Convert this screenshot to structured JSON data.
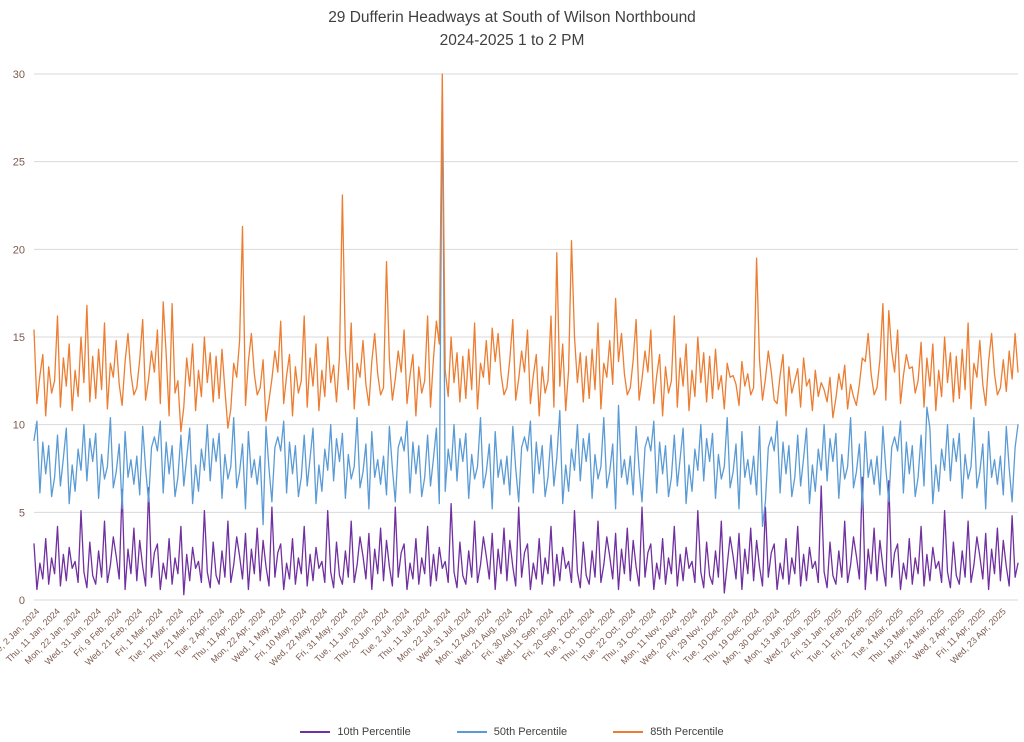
{
  "chart_data": {
    "type": "line",
    "title": "29 Dufferin Headways at South of Wilson Northbound",
    "subtitle": "2024-2025 1 to 2 PM",
    "xlabel": "",
    "ylabel": "",
    "ylim": [
      0,
      30
    ],
    "yticks": [
      0,
      5,
      10,
      15,
      20,
      25,
      30
    ],
    "grid": true,
    "legend_position": "bottom",
    "x_tick_every": 7,
    "x_tick_labels": [
      "Tue, 2 Jan, 2024",
      "Thu, 11 Jan, 2024",
      "Mon, 22 Jan, 2024",
      "Wed, 31 Jan, 2024",
      "Fri, 9 Feb, 2024",
      "Wed, 21 Feb, 2024",
      "Fri, 1 Mar, 2024",
      "Tue, 12 Mar, 2024",
      "Thu, 21 Mar, 2024",
      "Tue, 2 Apr, 2024",
      "Thu, 11 Apr, 2024",
      "Mon, 22 Apr, 2024",
      "Wed, 1 May, 2024",
      "Fri, 10 May, 2024",
      "Wed, 22 May, 2024",
      "Fri, 31 May, 2024",
      "Tue, 11 Jun, 2024",
      "Thu, 20 Jun, 2024",
      "Tue, 2 Jul, 2024",
      "Thu, 11 Jul, 2024",
      "Mon, 22 Jul, 2024",
      "Wed, 31 Jul, 2024",
      "Mon, 12 Aug, 2024",
      "Wed, 21 Aug, 2024",
      "Fri, 30 Aug, 2024",
      "Wed, 11 Sep, 2024",
      "Fri, 20 Sep, 2024",
      "Tue, 1 Oct, 2024",
      "Thu, 10 Oct, 2024",
      "Tue, 22 Oct, 2024",
      "Thu, 31 Oct, 2024",
      "Mon, 11 Nov, 2024",
      "Wed, 20 Nov, 2024",
      "Fri, 29 Nov, 2024",
      "Tue, 10 Dec, 2024",
      "Thu, 19 Dec, 2024",
      "Mon, 30 Dec, 2024",
      "Mon, 13 Jan, 2025",
      "Wed, 22 Jan, 2025",
      "Fri, 31 Jan, 2025",
      "Tue, 11 Feb, 2025",
      "Fri, 21 Feb, 2025",
      "Tue, 4 Mar, 2025",
      "Thu, 13 Mar, 2025",
      "Mon, 24 Mar, 2025",
      "Wed, 2 Apr, 2025",
      "Fri, 11 Apr, 2025",
      "Wed, 23 Apr, 2025"
    ],
    "style": {
      "grid_color": "#d9d9d9",
      "axis_label_color": "#7d5a4e",
      "title_color": "#3f3f3f",
      "legend_text_color": "#404040",
      "background": "#ffffff"
    },
    "series": [
      {
        "name": "10th Percentile",
        "color": "#7030a0",
        "values": [
          3.2,
          0.6,
          2.1,
          1.2,
          3.5,
          0.9,
          2.4,
          1.5,
          4.2,
          0.8,
          2.6,
          1.1,
          3.0,
          1.8,
          2.2,
          1.0,
          5.1,
          1.6,
          0.7,
          3.3,
          1.4,
          0.9,
          2.8,
          1.3,
          4.5,
          1.0,
          2.0,
          3.6,
          2.5,
          1.2,
          6.3,
          0.6,
          2.9,
          1.5,
          4.1,
          1.1,
          3.4,
          1.9,
          0.8,
          6.4,
          1.3,
          2.7,
          3.2,
          0.6,
          2.1,
          1.2,
          3.5,
          0.9,
          2.4,
          1.5,
          4.2,
          0.3,
          2.6,
          1.1,
          3.0,
          1.8,
          2.2,
          1.0,
          5.1,
          1.6,
          0.7,
          3.3,
          1.4,
          0.9,
          2.8,
          1.3,
          4.5,
          1.0,
          2.0,
          3.6,
          2.5,
          1.2,
          3.8,
          0.6,
          2.9,
          1.5,
          4.1,
          1.1,
          3.4,
          1.9,
          0.8,
          5.3,
          1.3,
          2.7,
          3.2,
          0.6,
          2.1,
          1.2,
          3.5,
          0.9,
          2.4,
          1.5,
          4.2,
          0.8,
          2.6,
          1.1,
          3.0,
          1.8,
          2.2,
          1.0,
          5.1,
          1.6,
          0.7,
          3.3,
          1.4,
          0.9,
          2.8,
          1.3,
          4.5,
          1.0,
          2.0,
          3.6,
          2.5,
          1.2,
          3.8,
          0.6,
          2.9,
          1.5,
          4.1,
          1.1,
          3.4,
          1.9,
          0.8,
          5.3,
          1.3,
          2.7,
          3.2,
          0.6,
          2.1,
          1.2,
          3.5,
          0.9,
          2.4,
          1.5,
          4.2,
          0.8,
          2.6,
          1.1,
          3.0,
          1.8,
          2.2,
          1.0,
          5.5,
          1.6,
          0.7,
          3.3,
          1.4,
          0.9,
          2.8,
          1.3,
          4.5,
          1.0,
          2.0,
          3.6,
          2.5,
          1.2,
          3.8,
          0.6,
          2.9,
          1.5,
          4.1,
          1.1,
          3.4,
          1.9,
          0.8,
          5.3,
          1.3,
          2.7,
          3.2,
          0.6,
          2.1,
          1.2,
          3.5,
          0.9,
          2.4,
          1.5,
          4.2,
          0.8,
          2.6,
          1.1,
          3.0,
          1.8,
          2.2,
          1.0,
          5.1,
          1.6,
          0.7,
          3.3,
          1.4,
          0.9,
          2.8,
          1.3,
          4.5,
          1.0,
          2.0,
          3.6,
          2.5,
          1.2,
          3.8,
          0.6,
          2.9,
          1.5,
          4.1,
          1.1,
          3.4,
          1.9,
          0.8,
          5.3,
          1.3,
          2.7,
          3.2,
          0.6,
          2.1,
          1.2,
          3.5,
          0.9,
          2.4,
          1.5,
          4.2,
          0.8,
          2.6,
          1.1,
          3.0,
          1.8,
          2.2,
          1.0,
          5.1,
          1.6,
          0.7,
          3.3,
          1.4,
          0.9,
          2.8,
          1.3,
          4.5,
          0.4,
          2.0,
          3.6,
          2.5,
          1.2,
          3.8,
          0.6,
          2.9,
          1.5,
          4.1,
          1.1,
          3.4,
          1.9,
          0.8,
          5.3,
          1.3,
          2.7,
          3.2,
          0.6,
          2.1,
          1.2,
          3.5,
          0.9,
          2.4,
          1.5,
          4.2,
          0.8,
          2.6,
          1.1,
          3.0,
          1.8,
          2.2,
          1.0,
          6.5,
          1.6,
          0.7,
          3.3,
          1.4,
          0.9,
          2.8,
          1.3,
          4.5,
          1.0,
          2.0,
          3.6,
          2.5,
          1.2,
          7.0,
          0.6,
          2.9,
          1.5,
          4.1,
          1.1,
          3.4,
          1.9,
          0.8,
          6.8,
          1.3,
          2.7,
          3.2,
          0.6,
          2.1,
          1.2,
          3.5,
          0.9,
          2.4,
          1.5,
          4.2,
          0.8,
          2.6,
          1.1,
          3.0,
          1.8,
          2.2,
          1.0,
          5.1,
          1.6,
          0.7,
          3.3,
          1.4,
          0.9,
          2.8,
          1.3,
          4.5,
          1.0,
          2.0,
          3.6,
          2.5,
          1.2,
          3.8,
          0.6,
          2.9,
          1.5,
          4.1,
          1.1,
          3.4,
          1.9,
          0.8,
          4.8,
          1.3,
          2.1
        ]
      },
      {
        "name": "50th Percentile",
        "color": "#5b9bd5",
        "values": [
          9.1,
          10.2,
          6.1,
          9.0,
          7.2,
          8.8,
          5.9,
          7.0,
          9.4,
          6.5,
          8.1,
          9.8,
          5.5,
          7.7,
          6.2,
          8.6,
          7.4,
          10.0,
          6.8,
          9.2,
          7.9,
          9.5,
          5.8,
          8.3,
          6.9,
          7.6,
          10.4,
          6.4,
          7.3,
          8.9,
          5.2,
          9.6,
          7.0,
          8.0,
          6.6,
          8.2,
          6.0,
          9.9,
          7.5,
          5.6,
          8.7,
          9.3,
          8.5,
          10.2,
          6.1,
          9.0,
          7.2,
          8.8,
          5.9,
          7.0,
          9.4,
          6.5,
          8.1,
          9.8,
          5.5,
          7.7,
          6.2,
          8.6,
          7.4,
          10.0,
          6.8,
          9.2,
          7.9,
          9.5,
          5.8,
          8.3,
          6.9,
          7.6,
          10.4,
          6.4,
          7.3,
          8.9,
          5.2,
          9.6,
          7.0,
          8.0,
          6.6,
          8.2,
          4.3,
          9.9,
          7.5,
          5.6,
          8.7,
          9.3,
          8.5,
          10.2,
          6.1,
          9.0,
          7.2,
          8.8,
          5.9,
          7.0,
          9.4,
          6.5,
          8.1,
          9.8,
          5.5,
          7.7,
          6.2,
          8.6,
          7.4,
          10.0,
          6.8,
          9.2,
          7.9,
          9.5,
          5.8,
          8.3,
          6.9,
          7.6,
          10.4,
          6.4,
          7.3,
          8.9,
          5.2,
          9.6,
          7.0,
          8.0,
          6.6,
          8.2,
          6.0,
          9.9,
          7.5,
          5.6,
          8.7,
          9.3,
          8.5,
          10.2,
          6.1,
          9.0,
          7.2,
          8.8,
          5.9,
          7.0,
          9.4,
          6.5,
          8.1,
          9.8,
          5.5,
          29.5,
          6.2,
          8.6,
          7.4,
          10.0,
          6.8,
          9.2,
          7.9,
          9.5,
          5.8,
          8.3,
          6.9,
          7.6,
          10.4,
          6.4,
          7.3,
          8.9,
          5.2,
          9.6,
          7.0,
          8.0,
          6.6,
          8.2,
          6.0,
          9.9,
          7.5,
          5.6,
          8.7,
          9.3,
          8.5,
          10.2,
          6.1,
          9.0,
          7.2,
          8.8,
          5.9,
          7.0,
          9.4,
          6.5,
          8.1,
          10.8,
          5.5,
          7.7,
          6.2,
          8.6,
          7.4,
          10.0,
          6.8,
          9.2,
          7.9,
          9.5,
          5.8,
          8.3,
          6.9,
          7.6,
          10.4,
          6.4,
          7.3,
          8.9,
          5.2,
          11.1,
          7.0,
          8.0,
          6.6,
          8.2,
          6.0,
          9.9,
          7.5,
          5.6,
          8.7,
          9.3,
          8.5,
          10.2,
          6.1,
          9.0,
          7.2,
          8.8,
          5.9,
          7.0,
          9.4,
          6.5,
          8.1,
          9.8,
          5.5,
          7.7,
          6.2,
          8.6,
          7.4,
          10.0,
          6.8,
          9.2,
          7.9,
          9.5,
          5.8,
          8.3,
          6.9,
          7.6,
          10.4,
          6.4,
          7.3,
          8.9,
          5.2,
          9.6,
          7.0,
          8.0,
          6.6,
          8.2,
          6.0,
          9.9,
          4.2,
          5.6,
          8.7,
          9.3,
          8.5,
          10.2,
          6.1,
          9.0,
          7.2,
          8.8,
          5.9,
          7.0,
          9.4,
          6.5,
          8.1,
          9.8,
          5.5,
          7.7,
          6.2,
          8.6,
          7.4,
          10.0,
          6.8,
          9.2,
          7.9,
          9.5,
          5.8,
          8.3,
          6.9,
          7.6,
          10.4,
          6.4,
          7.3,
          8.9,
          5.2,
          9.6,
          7.0,
          8.0,
          6.6,
          8.2,
          6.0,
          9.9,
          7.5,
          5.6,
          8.7,
          9.3,
          8.5,
          10.2,
          6.1,
          9.0,
          7.2,
          8.8,
          5.9,
          7.0,
          9.4,
          6.5,
          11.0,
          9.8,
          5.5,
          7.7,
          6.2,
          8.6,
          7.4,
          10.0,
          6.8,
          9.2,
          7.9,
          9.5,
          5.8,
          8.3,
          6.9,
          7.6,
          10.4,
          6.4,
          7.3,
          8.9,
          5.2,
          9.6,
          7.0,
          8.0,
          6.6,
          8.2,
          6.0,
          9.9,
          7.5,
          5.6,
          8.7,
          10.0
        ]
      },
      {
        "name": "85th Percentile",
        "color": "#ed7d31",
        "values": [
          15.4,
          11.2,
          12.8,
          14.0,
          10.5,
          13.3,
          11.8,
          12.5,
          16.2,
          11.0,
          13.8,
          12.2,
          14.6,
          10.8,
          13.1,
          11.6,
          15.0,
          12.4,
          16.8,
          11.3,
          13.9,
          11.5,
          14.3,
          12.0,
          15.8,
          10.9,
          13.5,
          12.7,
          14.8,
          12.3,
          11.1,
          13.6,
          15.2,
          12.9,
          11.7,
          12.1,
          13.7,
          16.0,
          11.4,
          12.6,
          14.2,
          13.0,
          15.4,
          11.2,
          17.0,
          14.0,
          10.5,
          16.9,
          11.8,
          12.5,
          9.6,
          11.0,
          13.8,
          12.2,
          14.6,
          10.8,
          13.1,
          11.6,
          15.0,
          12.4,
          14.1,
          11.3,
          13.9,
          11.5,
          14.3,
          12.0,
          9.8,
          10.9,
          13.5,
          12.7,
          14.8,
          21.3,
          11.1,
          13.6,
          15.2,
          12.9,
          11.7,
          12.1,
          13.7,
          10.2,
          11.4,
          12.6,
          14.2,
          13.0,
          15.9,
          11.2,
          12.8,
          14.0,
          10.5,
          13.3,
          11.8,
          12.5,
          16.2,
          11.0,
          13.8,
          12.2,
          14.6,
          10.8,
          13.1,
          11.6,
          15.0,
          12.4,
          13.4,
          11.3,
          13.9,
          23.1,
          14.3,
          12.0,
          15.8,
          10.9,
          13.5,
          12.7,
          14.8,
          12.3,
          11.1,
          13.6,
          15.2,
          12.9,
          11.7,
          12.1,
          19.3,
          13.7,
          11.4,
          12.6,
          14.2,
          13.0,
          15.4,
          11.2,
          12.8,
          14.0,
          10.5,
          13.3,
          11.8,
          12.5,
          16.2,
          11.0,
          13.8,
          15.9,
          14.6,
          31.0,
          13.1,
          11.6,
          15.0,
          12.4,
          14.1,
          11.3,
          13.9,
          11.5,
          14.3,
          12.0,
          15.8,
          10.9,
          13.5,
          12.7,
          14.8,
          12.3,
          15.5,
          13.6,
          15.2,
          12.9,
          11.7,
          12.1,
          13.7,
          16.0,
          11.4,
          12.6,
          14.2,
          13.0,
          15.4,
          11.2,
          12.8,
          14.0,
          10.5,
          13.3,
          11.8,
          12.5,
          16.2,
          11.0,
          19.8,
          12.2,
          14.6,
          10.8,
          13.1,
          20.5,
          15.0,
          12.4,
          14.1,
          11.3,
          13.9,
          11.5,
          14.3,
          12.0,
          15.8,
          10.9,
          13.5,
          12.7,
          14.8,
          12.3,
          17.2,
          13.6,
          15.2,
          12.9,
          11.7,
          12.1,
          13.7,
          16.0,
          11.4,
          12.6,
          14.2,
          13.0,
          15.4,
          11.2,
          12.8,
          14.0,
          10.5,
          13.3,
          11.8,
          12.5,
          16.2,
          11.0,
          13.8,
          12.2,
          14.6,
          10.8,
          13.1,
          11.6,
          15.0,
          12.4,
          14.1,
          11.3,
          13.9,
          11.5,
          14.3,
          12.0,
          12.8,
          10.9,
          13.5,
          12.7,
          12.8,
          12.3,
          11.1,
          13.6,
          12.2,
          12.9,
          11.7,
          12.1,
          19.5,
          13.7,
          11.4,
          12.6,
          14.2,
          13.0,
          11.4,
          11.2,
          12.8,
          14.0,
          10.5,
          13.3,
          11.8,
          12.5,
          13.2,
          11.0,
          13.8,
          12.2,
          12.6,
          10.8,
          13.1,
          11.6,
          12.4,
          12.0,
          11.3,
          12.7,
          10.4,
          11.5,
          12.9,
          12.0,
          13.4,
          10.9,
          12.3,
          11.6,
          11.1,
          12.3,
          13.8,
          13.6,
          15.2,
          12.9,
          11.7,
          12.1,
          13.7,
          16.9,
          11.4,
          16.5,
          14.2,
          13.0,
          15.4,
          11.2,
          12.8,
          14.0,
          13.2,
          13.3,
          11.8,
          12.5,
          14.7,
          11.0,
          13.8,
          12.2,
          14.6,
          10.8,
          13.1,
          11.6,
          15.0,
          12.4,
          14.1,
          11.3,
          13.9,
          11.5,
          14.3,
          12.0,
          15.8,
          10.9,
          13.5,
          12.7,
          14.8,
          12.3,
          11.1,
          13.6,
          15.2,
          12.9,
          11.7,
          12.1,
          13.7,
          11.9,
          14.2,
          12.6,
          15.2,
          13.0
        ]
      }
    ]
  }
}
